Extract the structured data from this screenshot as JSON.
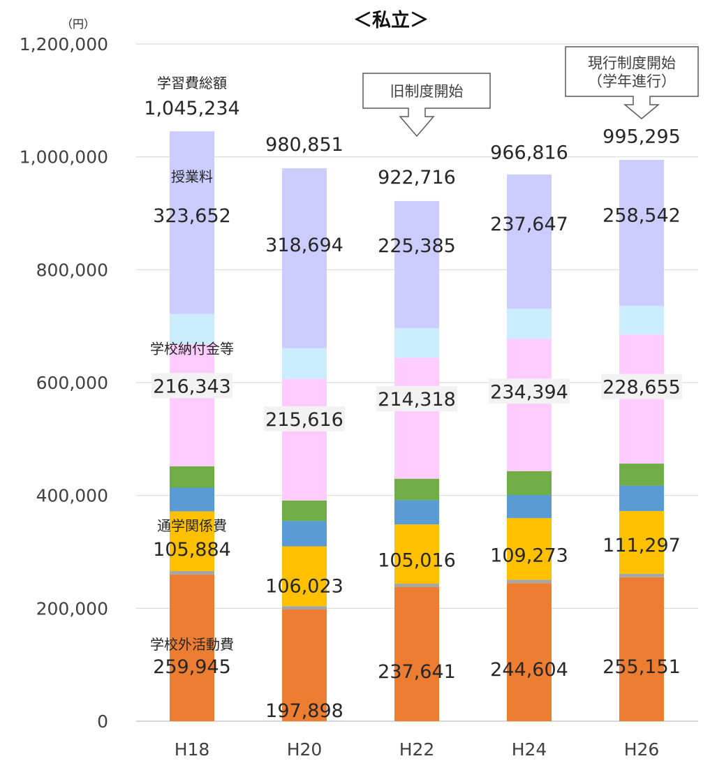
{
  "chart_data": {
    "type": "bar",
    "stacked": true,
    "title": "＜私立＞",
    "unit_label": "（円）",
    "categories": [
      "H18",
      "H20",
      "H22",
      "H24",
      "H26"
    ],
    "ylim": [
      0,
      1200000
    ],
    "yticks": [
      0,
      200000,
      400000,
      600000,
      800000,
      1000000,
      1200000
    ],
    "ytick_labels": [
      "0",
      "200,000",
      "400,000",
      "600,000",
      "800,000",
      "1,000,000",
      "1,200,000"
    ],
    "grid": true,
    "totals": [
      1045234,
      980851,
      922716,
      966816,
      995295
    ],
    "total_labels": [
      "1,045,234",
      "980,851",
      "922,716",
      "966,816",
      "995,295"
    ],
    "series": [
      {
        "name": "学校外活動費",
        "color": "#ED7D31",
        "values": [
          259945,
          197898,
          237641,
          244604,
          255151
        ],
        "labels": [
          "259,945",
          "197,898",
          "237,641",
          "244,604",
          "255,151"
        ]
      },
      {
        "color": "#A5A5A5",
        "values": [
          6000,
          6000,
          6000,
          6000,
          6000
        ]
      },
      {
        "name": "通学関係費",
        "color": "#FFC000",
        "values": [
          105884,
          106023,
          105016,
          109273,
          111297
        ],
        "labels": [
          "105,884",
          "106,023",
          "105,016",
          "109,273",
          "111,297"
        ]
      },
      {
        "color": "#5B9BD5",
        "values": [
          42000,
          45000,
          43000,
          41000,
          45000
        ]
      },
      {
        "color": "#70AD47",
        "values": [
          38000,
          36000,
          38000,
          42000,
          39000
        ]
      },
      {
        "name": "学校納付金等",
        "color": "#FFCCFF",
        "values": [
          216343,
          215616,
          214318,
          234394,
          228655
        ],
        "labels": [
          "216,343",
          "215,616",
          "214,318",
          "234,394",
          "228,655"
        ]
      },
      {
        "color": "#CCECFF",
        "values": [
          53410,
          54620,
          52356,
          53898,
          51050
        ]
      },
      {
        "name": "授業料",
        "color": "#CCCCFF",
        "values": [
          323652,
          318694,
          225385,
          237647,
          258542
        ],
        "labels": [
          "323,652",
          "318,694",
          "225,385",
          "237,647",
          "258,542"
        ]
      }
    ],
    "annotations": {
      "total_name": "学習費総額",
      "callouts": [
        {
          "category": "H22",
          "lines": [
            "旧制度開始"
          ]
        },
        {
          "category": "H26",
          "lines": [
            "現行制度開始",
            "（学年進行）"
          ]
        }
      ]
    }
  }
}
